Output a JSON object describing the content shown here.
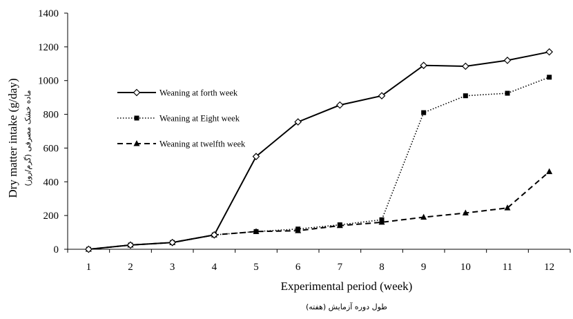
{
  "chart_data": {
    "type": "line",
    "x": [
      1,
      2,
      3,
      4,
      5,
      6,
      7,
      8,
      9,
      10,
      11,
      12
    ],
    "series": [
      {
        "name": "Weaning at forth week",
        "values": [
          0,
          25,
          40,
          85,
          550,
          755,
          855,
          910,
          1090,
          1085,
          1120,
          1170
        ],
        "line": "solid",
        "marker": "diamond-open"
      },
      {
        "name": "Weaning at Eight week",
        "values": [
          0,
          25,
          40,
          85,
          105,
          120,
          145,
          175,
          810,
          910,
          925,
          1020
        ],
        "line": "dotted",
        "marker": "square-filled"
      },
      {
        "name": "Weaning at twelfth week",
        "values": [
          0,
          25,
          40,
          85,
          105,
          110,
          140,
          160,
          190,
          215,
          245,
          460
        ],
        "line": "dashed",
        "marker": "triangle-filled"
      }
    ],
    "xlabel": "Experimental period (week)",
    "xlabel_secondary": "طول دوره آزمایش (هفته)",
    "ylabel": "Dry matter intake (g/day)",
    "ylabel_secondary": "ماده خشک مصرفی (گرم/روز)",
    "ylim": [
      0,
      1400
    ],
    "yticks": [
      0,
      200,
      400,
      600,
      800,
      1000,
      1200,
      1400
    ],
    "xticks": [
      1,
      2,
      3,
      4,
      5,
      6,
      7,
      8,
      9,
      10,
      11,
      12
    ],
    "grid": false,
    "legend_position": "upper-left",
    "color": "#000000"
  }
}
